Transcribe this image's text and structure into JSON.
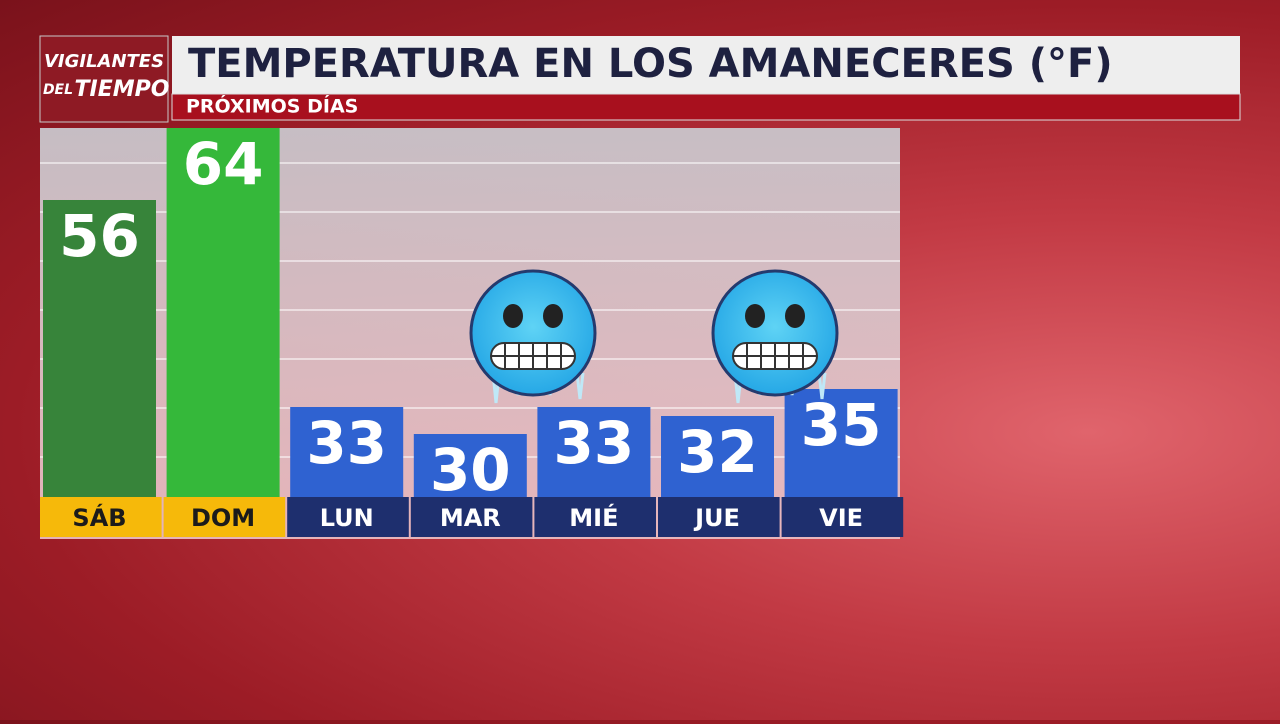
{
  "chart_data": {
    "type": "bar",
    "logo": [
      "VIGILANTES",
      "DEL",
      "TIEMPO"
    ],
    "title": "TEMPERATURA EN LOS AMANECERES (°F)",
    "subtitle": "PRÓXIMOS DÍAS",
    "categories": [
      "SÁB",
      "DOM",
      "LUN",
      "MAR",
      "MIÉ",
      "JUE",
      "VIE"
    ],
    "values": [
      56,
      64,
      33,
      30,
      33,
      32,
      35
    ],
    "colors": [
      "#37843a",
      "#35b83a",
      "#2f62d1",
      "#2f62d1",
      "#2f62d1",
      "#2f62d1",
      "#2f62d1"
    ],
    "label_colors": [
      "#f6b90a",
      "#f6b90a",
      "#1e2f6e",
      "#1e2f6e",
      "#1e2f6e",
      "#1e2f6e",
      "#1e2f6e"
    ],
    "label_text_colors": [
      "#1b1b1b",
      "#1b1b1b",
      "#ffffff",
      "#ffffff",
      "#ffffff",
      "#ffffff",
      "#ffffff"
    ],
    "ylim": [
      23,
      64
    ]
  }
}
